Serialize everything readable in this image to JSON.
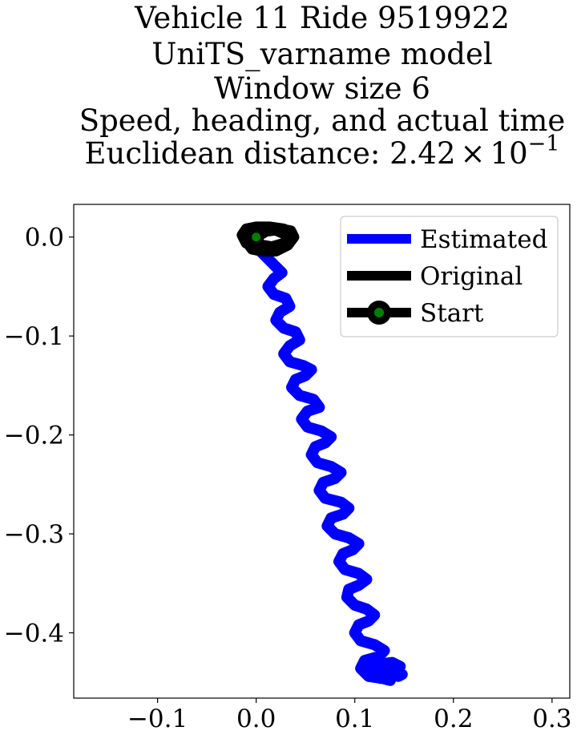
{
  "chart_data": {
    "type": "line",
    "title_lines": [
      "Vehicle 11 Ride 9519922",
      "UniTS_varname model",
      "Window size 6",
      "Speed, heading, and actual time"
    ],
    "distance_label": "Euclidean distance: ",
    "distance_mantissa": "2.42",
    "distance_times": "×",
    "distance_base": "10",
    "distance_exponent": "−1",
    "xlim": [
      -0.185,
      0.318
    ],
    "ylim": [
      -0.466,
      0.033
    ],
    "x_ticks": [
      {
        "value": -0.1,
        "label": "−0.1"
      },
      {
        "value": 0.0,
        "label": "0.0"
      },
      {
        "value": 0.1,
        "label": "0.1"
      },
      {
        "value": 0.2,
        "label": "0.2"
      },
      {
        "value": 0.3,
        "label": "0.3"
      }
    ],
    "y_ticks": [
      {
        "value": 0.0,
        "label": "0.0"
      },
      {
        "value": -0.1,
        "label": "−0.1"
      },
      {
        "value": -0.2,
        "label": "−0.2"
      },
      {
        "value": -0.3,
        "label": "−0.3"
      },
      {
        "value": -0.4,
        "label": "−0.4"
      }
    ],
    "grid": false,
    "legend_position": "top-right",
    "series": [
      {
        "name": "Estimated",
        "color": "#0000ff",
        "x": [
          0.0,
          0.01,
          0.02,
          0.026,
          0.018,
          0.012,
          0.018,
          0.03,
          0.034,
          0.024,
          0.02,
          0.028,
          0.04,
          0.044,
          0.034,
          0.028,
          0.034,
          0.048,
          0.056,
          0.05,
          0.04,
          0.036,
          0.044,
          0.058,
          0.064,
          0.052,
          0.046,
          0.052,
          0.066,
          0.076,
          0.07,
          0.06,
          0.056,
          0.062,
          0.076,
          0.086,
          0.08,
          0.068,
          0.064,
          0.07,
          0.086,
          0.094,
          0.088,
          0.076,
          0.072,
          0.08,
          0.094,
          0.104,
          0.098,
          0.088,
          0.084,
          0.09,
          0.104,
          0.112,
          0.104,
          0.094,
          0.092,
          0.1,
          0.112,
          0.12,
          0.114,
          0.104,
          0.1,
          0.106,
          0.12,
          0.13,
          0.124,
          0.11,
          0.106,
          0.114,
          0.128,
          0.136,
          0.13,
          0.12,
          0.118,
          0.124,
          0.138,
          0.146,
          0.138,
          0.128,
          0.126,
          0.134,
          0.148,
          0.144
        ],
        "y": [
          -0.01,
          -0.02,
          -0.03,
          -0.036,
          -0.042,
          -0.05,
          -0.058,
          -0.062,
          -0.07,
          -0.076,
          -0.084,
          -0.092,
          -0.096,
          -0.104,
          -0.11,
          -0.118,
          -0.126,
          -0.13,
          -0.134,
          -0.14,
          -0.144,
          -0.152,
          -0.16,
          -0.164,
          -0.172,
          -0.176,
          -0.184,
          -0.192,
          -0.196,
          -0.202,
          -0.208,
          -0.212,
          -0.22,
          -0.228,
          -0.232,
          -0.238,
          -0.244,
          -0.248,
          -0.256,
          -0.264,
          -0.268,
          -0.274,
          -0.28,
          -0.284,
          -0.292,
          -0.3,
          -0.304,
          -0.31,
          -0.316,
          -0.32,
          -0.328,
          -0.336,
          -0.34,
          -0.346,
          -0.352,
          -0.356,
          -0.364,
          -0.372,
          -0.376,
          -0.382,
          -0.388,
          -0.392,
          -0.4,
          -0.408,
          -0.412,
          -0.418,
          -0.424,
          -0.428,
          -0.436,
          -0.444,
          -0.446,
          -0.448,
          -0.444,
          -0.44,
          -0.436,
          -0.432,
          -0.43,
          -0.434,
          -0.438,
          -0.442,
          -0.446,
          -0.444,
          -0.442,
          -0.444
        ]
      },
      {
        "name": "Original",
        "color": "#000000",
        "x": [
          0.0,
          0.01,
          0.025,
          0.035,
          0.038,
          0.032,
          0.02,
          0.008,
          0.0,
          -0.01,
          -0.014,
          -0.01,
          0.0,
          0.014,
          0.028,
          0.036,
          0.03,
          0.018,
          0.006,
          -0.004,
          -0.01,
          -0.006,
          0.004,
          0.018,
          0.032,
          0.03,
          0.016,
          0.004,
          0.0
        ],
        "y": [
          0.0,
          0.006,
          0.008,
          0.006,
          0.0,
          -0.008,
          -0.014,
          -0.014,
          -0.01,
          -0.006,
          0.002,
          0.008,
          0.01,
          0.01,
          0.008,
          0.002,
          -0.006,
          -0.012,
          -0.014,
          -0.012,
          -0.004,
          0.004,
          0.008,
          0.008,
          0.002,
          -0.006,
          -0.01,
          -0.008,
          0.0
        ]
      },
      {
        "name": "Start",
        "color": "#000000",
        "marker_color": "#008000",
        "x": [
          0.0
        ],
        "y": [
          0.0
        ]
      }
    ]
  }
}
